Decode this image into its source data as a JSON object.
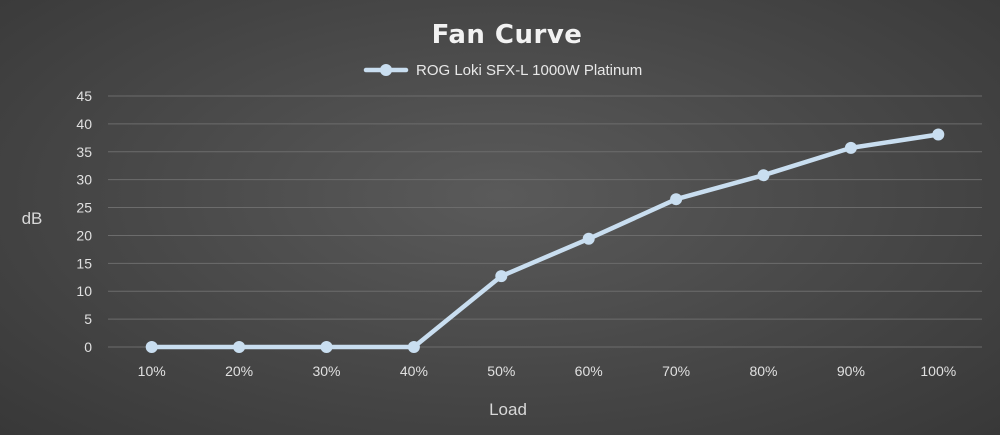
{
  "chart_data": {
    "type": "line",
    "title": "Fan Curve",
    "xlabel": "Load",
    "ylabel": "dB",
    "categories": [
      "10%",
      "20%",
      "30%",
      "40%",
      "50%",
      "60%",
      "70%",
      "80%",
      "90%",
      "100%"
    ],
    "y_ticks": [
      "0",
      "5",
      "10",
      "15",
      "20",
      "25",
      "30",
      "35",
      "40",
      "45"
    ],
    "ylim": [
      0,
      45
    ],
    "grid": true,
    "legend_position": "top",
    "series": [
      {
        "name": "ROG Loki SFX-L 1000W Platinum",
        "color": "#c9def0",
        "values": [
          0,
          0,
          0,
          0,
          12.7,
          19.4,
          26.5,
          30.8,
          35.7,
          38.1
        ]
      }
    ]
  }
}
